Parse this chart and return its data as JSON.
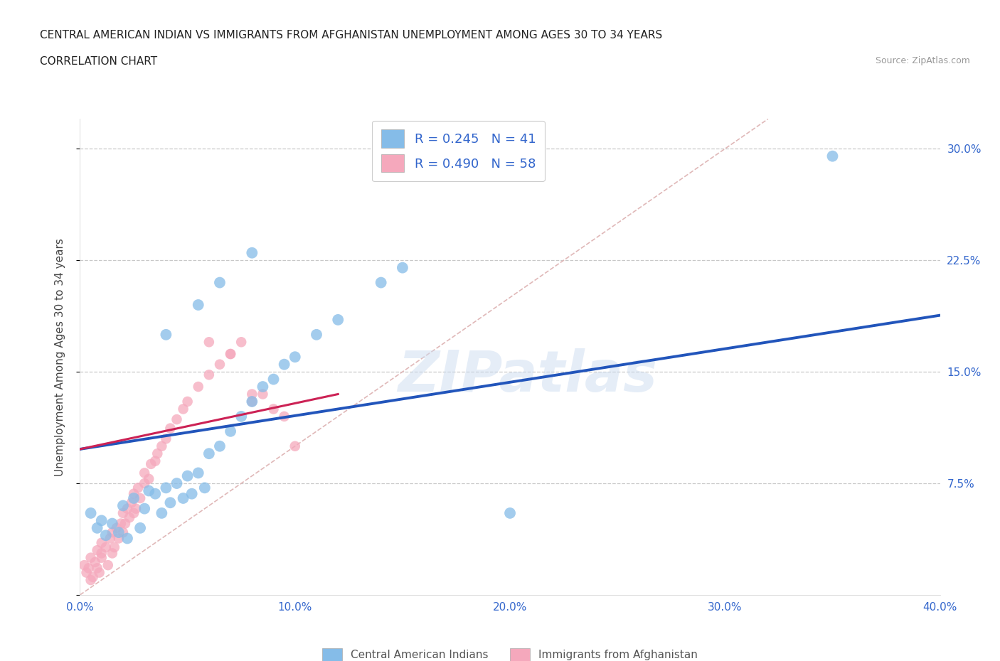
{
  "title_line1": "CENTRAL AMERICAN INDIAN VS IMMIGRANTS FROM AFGHANISTAN UNEMPLOYMENT AMONG AGES 30 TO 34 YEARS",
  "title_line2": "CORRELATION CHART",
  "source_text": "Source: ZipAtlas.com",
  "ylabel": "Unemployment Among Ages 30 to 34 years",
  "xlim": [
    0.0,
    0.4
  ],
  "ylim": [
    0.0,
    0.32
  ],
  "xticks": [
    0.0,
    0.1,
    0.2,
    0.3,
    0.4
  ],
  "yticks": [
    0.0,
    0.075,
    0.15,
    0.225,
    0.3
  ],
  "xtick_labels": [
    "0.0%",
    "10.0%",
    "20.0%",
    "30.0%",
    "40.0%"
  ],
  "ytick_labels": [
    "",
    "7.5%",
    "15.0%",
    "22.5%",
    "30.0%"
  ],
  "background_color": "#ffffff",
  "grid_color": "#c8c8c8",
  "diagonal_line_color": "#e0b8b8",
  "watermark_text": "ZIPatlas",
  "blue_color": "#85bce8",
  "pink_color": "#f5a8bc",
  "blue_line_color": "#2255bb",
  "pink_line_color": "#cc2255",
  "legend_R1": "R = 0.245",
  "legend_N1": "N = 41",
  "legend_R2": "R = 0.490",
  "legend_N2": "N = 58",
  "blue_scatter_x": [
    0.005,
    0.008,
    0.01,
    0.012,
    0.015,
    0.018,
    0.02,
    0.022,
    0.025,
    0.028,
    0.03,
    0.032,
    0.035,
    0.038,
    0.04,
    0.042,
    0.045,
    0.048,
    0.05,
    0.052,
    0.055,
    0.058,
    0.06,
    0.065,
    0.07,
    0.075,
    0.08,
    0.085,
    0.09,
    0.095,
    0.1,
    0.11,
    0.12,
    0.14,
    0.15,
    0.04,
    0.055,
    0.065,
    0.08,
    0.2,
    0.35
  ],
  "blue_scatter_y": [
    0.055,
    0.045,
    0.05,
    0.04,
    0.048,
    0.042,
    0.06,
    0.038,
    0.065,
    0.045,
    0.058,
    0.07,
    0.068,
    0.055,
    0.072,
    0.062,
    0.075,
    0.065,
    0.08,
    0.068,
    0.082,
    0.072,
    0.095,
    0.1,
    0.11,
    0.12,
    0.13,
    0.14,
    0.145,
    0.155,
    0.16,
    0.175,
    0.185,
    0.21,
    0.22,
    0.175,
    0.195,
    0.21,
    0.23,
    0.055,
    0.295
  ],
  "pink_scatter_x": [
    0.002,
    0.003,
    0.004,
    0.005,
    0.005,
    0.006,
    0.007,
    0.008,
    0.008,
    0.009,
    0.01,
    0.01,
    0.01,
    0.012,
    0.013,
    0.014,
    0.015,
    0.015,
    0.016,
    0.017,
    0.018,
    0.019,
    0.02,
    0.02,
    0.021,
    0.022,
    0.023,
    0.024,
    0.025,
    0.025,
    0.026,
    0.027,
    0.028,
    0.03,
    0.03,
    0.032,
    0.033,
    0.035,
    0.036,
    0.038,
    0.04,
    0.042,
    0.045,
    0.048,
    0.05,
    0.055,
    0.06,
    0.065,
    0.07,
    0.075,
    0.08,
    0.085,
    0.09,
    0.095,
    0.1,
    0.06,
    0.07,
    0.08
  ],
  "pink_scatter_y": [
    0.02,
    0.015,
    0.018,
    0.01,
    0.025,
    0.012,
    0.022,
    0.018,
    0.03,
    0.015,
    0.025,
    0.035,
    0.028,
    0.032,
    0.02,
    0.038,
    0.028,
    0.042,
    0.032,
    0.045,
    0.038,
    0.048,
    0.042,
    0.055,
    0.048,
    0.058,
    0.052,
    0.062,
    0.055,
    0.068,
    0.058,
    0.072,
    0.065,
    0.075,
    0.082,
    0.078,
    0.088,
    0.09,
    0.095,
    0.1,
    0.105,
    0.112,
    0.118,
    0.125,
    0.13,
    0.14,
    0.148,
    0.155,
    0.162,
    0.17,
    0.13,
    0.135,
    0.125,
    0.12,
    0.1,
    0.17,
    0.162,
    0.135
  ],
  "blue_trend_x": [
    0.0,
    0.4
  ],
  "blue_trend_y": [
    0.098,
    0.188
  ],
  "pink_trend_x": [
    0.0,
    0.12
  ],
  "pink_trend_y": [
    0.098,
    0.135
  ],
  "tick_color": "#3366cc"
}
